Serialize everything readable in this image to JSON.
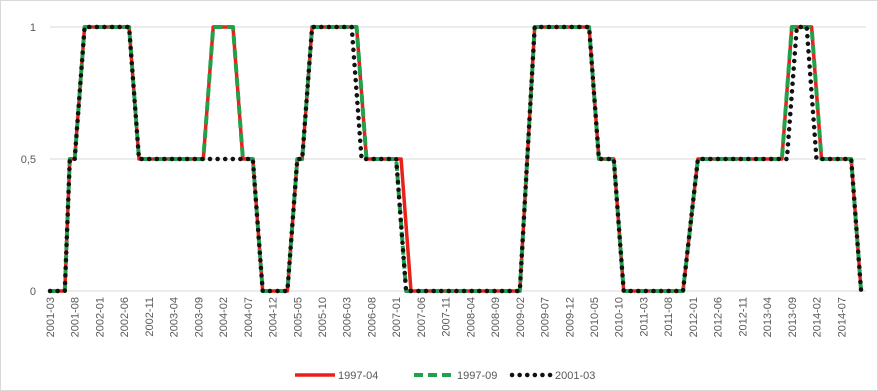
{
  "chart_data": {
    "type": "line",
    "title": "",
    "xlabel": "",
    "ylabel": "",
    "ylim": [
      0,
      1
    ],
    "y_ticks": [
      "0",
      "0,5",
      "1"
    ],
    "grid": "horizontal",
    "legend_position": "bottom",
    "x_tick_labels": [
      "2001-03",
      "2001-08",
      "2002-01",
      "2002-06",
      "2002-11",
      "2003-04",
      "2003-09",
      "2004-02",
      "2004-07",
      "2004-12",
      "2005-05",
      "2005-10",
      "2006-03",
      "2006-08",
      "2007-01",
      "2007-06",
      "2007-11",
      "2008-04",
      "2008-09",
      "2009-02",
      "2009-07",
      "2009-12",
      "2010-05",
      "2010-10",
      "2011-03",
      "2011-08",
      "2012-01",
      "2012-06",
      "2012-11",
      "2013-04",
      "2013-09",
      "2014-02",
      "2014-07"
    ],
    "series": [
      {
        "name": "1997-04",
        "color": "#e8221b",
        "style": "solid",
        "points": [
          [
            "2001-03",
            0
          ],
          [
            "2001-06",
            0
          ],
          [
            "2001-07",
            0.5
          ],
          [
            "2001-08",
            0.5
          ],
          [
            "2001-10",
            1
          ],
          [
            "2002-07",
            1
          ],
          [
            "2002-09",
            0.5
          ],
          [
            "2003-10",
            0.5
          ],
          [
            "2003-12",
            1
          ],
          [
            "2004-04",
            1
          ],
          [
            "2004-06",
            0.5
          ],
          [
            "2004-08",
            0.5
          ],
          [
            "2004-10",
            0
          ],
          [
            "2005-03",
            0
          ],
          [
            "2005-05",
            0.5
          ],
          [
            "2005-06",
            0.5
          ],
          [
            "2005-08",
            1
          ],
          [
            "2006-05",
            1
          ],
          [
            "2006-07",
            0.5
          ],
          [
            "2007-02",
            0.5
          ],
          [
            "2007-04",
            0
          ],
          [
            "2009-02",
            0
          ],
          [
            "2009-05",
            1
          ],
          [
            "2010-04",
            1
          ],
          [
            "2010-06",
            0.5
          ],
          [
            "2010-09",
            0.5
          ],
          [
            "2010-11",
            0
          ],
          [
            "2011-11",
            0
          ],
          [
            "2012-02",
            0.5
          ],
          [
            "2013-07",
            0.5
          ],
          [
            "2013-09",
            1
          ],
          [
            "2014-01",
            1
          ],
          [
            "2014-03",
            0.5
          ],
          [
            "2014-09",
            0.5
          ],
          [
            "2014-11",
            0
          ]
        ]
      },
      {
        "name": "1997-09",
        "color": "#22a04b",
        "style": "dashed",
        "points": [
          [
            "2001-03",
            0
          ],
          [
            "2001-06",
            0
          ],
          [
            "2001-07",
            0.5
          ],
          [
            "2001-08",
            0.5
          ],
          [
            "2001-10",
            1
          ],
          [
            "2002-07",
            1
          ],
          [
            "2002-09",
            0.5
          ],
          [
            "2003-10",
            0.5
          ],
          [
            "2003-12",
            1
          ],
          [
            "2004-04",
            1
          ],
          [
            "2004-06",
            0.5
          ],
          [
            "2004-08",
            0.5
          ],
          [
            "2004-10",
            0
          ],
          [
            "2005-03",
            0
          ],
          [
            "2005-05",
            0.5
          ],
          [
            "2005-06",
            0.5
          ],
          [
            "2005-08",
            1
          ],
          [
            "2006-05",
            1
          ],
          [
            "2006-07",
            0.5
          ],
          [
            "2007-01",
            0.5
          ],
          [
            "2007-03",
            0
          ],
          [
            "2009-02",
            0
          ],
          [
            "2009-05",
            1
          ],
          [
            "2010-04",
            1
          ],
          [
            "2010-06",
            0.5
          ],
          [
            "2010-09",
            0.5
          ],
          [
            "2010-11",
            0
          ],
          [
            "2011-11",
            0
          ],
          [
            "2012-02",
            0.5
          ],
          [
            "2013-07",
            0.5
          ],
          [
            "2013-09",
            1
          ],
          [
            "2014-01",
            1
          ],
          [
            "2014-03",
            0.5
          ],
          [
            "2014-09",
            0.5
          ],
          [
            "2014-11",
            0
          ]
        ]
      },
      {
        "name": "2001-03",
        "color": "#111111",
        "style": "dotted",
        "points": [
          [
            "2001-03",
            0
          ],
          [
            "2001-06",
            0
          ],
          [
            "2001-07",
            0.5
          ],
          [
            "2001-08",
            0.5
          ],
          [
            "2001-10",
            1
          ],
          [
            "2002-07",
            1
          ],
          [
            "2002-09",
            0.5
          ],
          [
            "2004-06",
            0.5
          ],
          [
            "2004-08",
            0.5
          ],
          [
            "2004-10",
            0
          ],
          [
            "2005-03",
            0
          ],
          [
            "2005-05",
            0.5
          ],
          [
            "2005-06",
            0.5
          ],
          [
            "2005-08",
            1
          ],
          [
            "2006-04",
            1
          ],
          [
            "2006-06",
            0.5
          ],
          [
            "2007-01",
            0.5
          ],
          [
            "2007-03",
            0
          ],
          [
            "2009-02",
            0
          ],
          [
            "2009-05",
            1
          ],
          [
            "2010-04",
            1
          ],
          [
            "2010-06",
            0.5
          ],
          [
            "2010-09",
            0.5
          ],
          [
            "2010-11",
            0
          ],
          [
            "2011-11",
            0
          ],
          [
            "2012-02",
            0.5
          ],
          [
            "2013-08",
            0.5
          ],
          [
            "2013-10",
            1
          ],
          [
            "2013-12",
            1
          ],
          [
            "2014-02",
            0.5
          ],
          [
            "2014-09",
            0.5
          ],
          [
            "2014-11",
            0
          ]
        ]
      }
    ]
  }
}
